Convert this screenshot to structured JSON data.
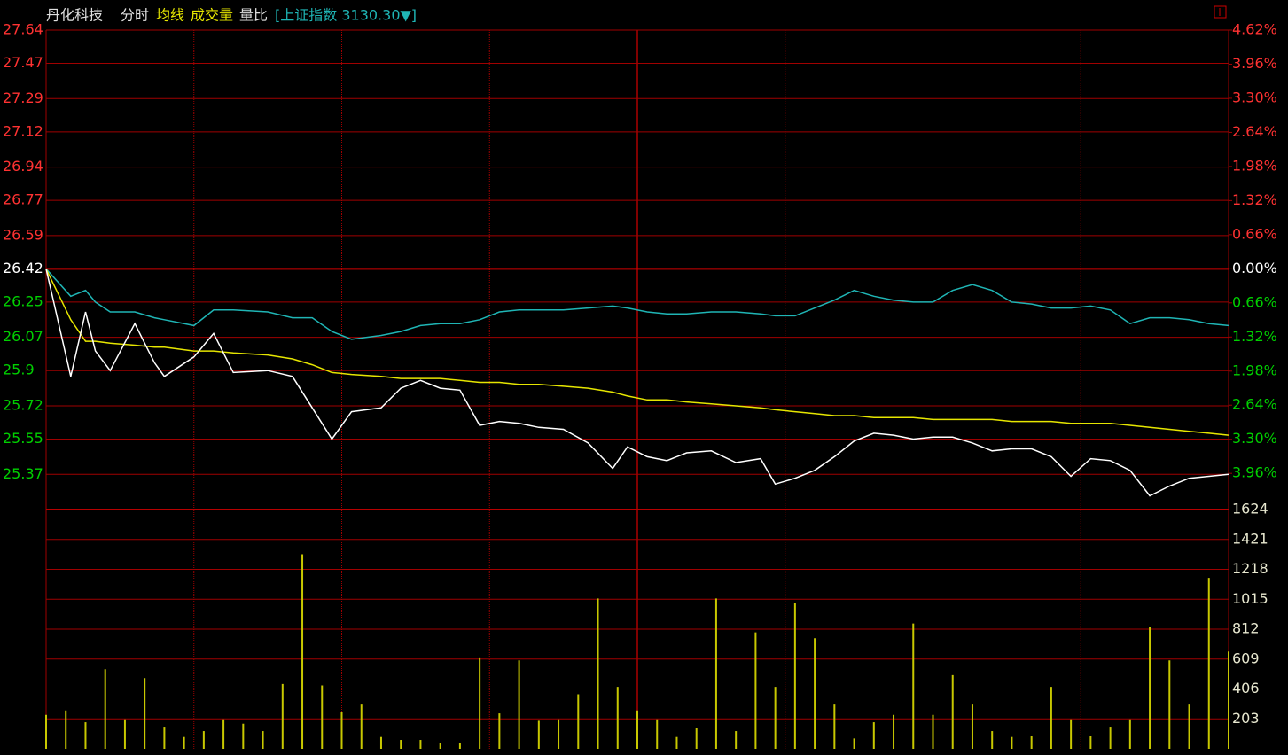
{
  "header": {
    "stock": "丹化科技",
    "items": [
      "分时",
      "均线",
      "成交量",
      "量比"
    ],
    "index": "[上证指数 3130.30▼]"
  },
  "chart_data": [
    {
      "type": "line",
      "xlim": [
        0,
        240
      ],
      "x": [
        0,
        5,
        8,
        10,
        13,
        18,
        22,
        24,
        30,
        34,
        38,
        45,
        50,
        54,
        58,
        62,
        68,
        72,
        76,
        80,
        84,
        88,
        92,
        96,
        100,
        105,
        110,
        115,
        118,
        122,
        126,
        130,
        135,
        140,
        145,
        148,
        152,
        156,
        160,
        164,
        168,
        172,
        176,
        180,
        184,
        188,
        192,
        196,
        200,
        204,
        208,
        212,
        216,
        220,
        224,
        228,
        232,
        236,
        240
      ],
      "series": [
        {
          "color": "#ffffff",
          "values": [
            26.42,
            25.87,
            26.2,
            26.0,
            25.9,
            26.14,
            25.94,
            25.87,
            25.97,
            26.09,
            25.89,
            25.9,
            25.87,
            25.71,
            25.55,
            25.69,
            25.71,
            25.81,
            25.85,
            25.81,
            25.8,
            25.62,
            25.64,
            25.63,
            25.61,
            25.6,
            25.53,
            25.4,
            25.51,
            25.46,
            25.44,
            25.48,
            25.49,
            25.43,
            25.45,
            25.32,
            25.35,
            25.39,
            25.46,
            25.54,
            25.58,
            25.57,
            25.55,
            25.56,
            25.56,
            25.53,
            25.49,
            25.5,
            25.5,
            25.46,
            25.36,
            25.45,
            25.44,
            25.39,
            25.26,
            25.31,
            25.35,
            25.36,
            25.37
          ]
        },
        {
          "color": "#e6e600",
          "values": [
            26.42,
            26.16,
            26.05,
            26.05,
            26.04,
            26.03,
            26.02,
            26.02,
            26.0,
            26.0,
            25.99,
            25.98,
            25.96,
            25.93,
            25.89,
            25.88,
            25.87,
            25.86,
            25.86,
            25.86,
            25.85,
            25.84,
            25.84,
            25.83,
            25.83,
            25.82,
            25.81,
            25.79,
            25.77,
            25.75,
            25.75,
            25.74,
            25.73,
            25.72,
            25.71,
            25.7,
            25.69,
            25.68,
            25.67,
            25.67,
            25.66,
            25.66,
            25.66,
            25.65,
            25.65,
            25.65,
            25.65,
            25.64,
            25.64,
            25.64,
            25.63,
            25.63,
            25.63,
            25.62,
            25.61,
            25.6,
            25.59,
            25.58,
            25.57
          ]
        },
        {
          "color": "#1fb5b5",
          "values": [
            26.42,
            26.28,
            26.31,
            26.25,
            26.2,
            26.2,
            26.17,
            26.16,
            26.13,
            26.21,
            26.21,
            26.2,
            26.17,
            26.17,
            26.1,
            26.06,
            26.08,
            26.1,
            26.13,
            26.14,
            26.14,
            26.16,
            26.2,
            26.21,
            26.21,
            26.21,
            26.22,
            26.23,
            26.22,
            26.2,
            26.19,
            26.19,
            26.2,
            26.2,
            26.19,
            26.18,
            26.18,
            26.22,
            26.26,
            26.31,
            26.28,
            26.26,
            26.25,
            26.25,
            26.31,
            26.34,
            26.31,
            26.25,
            26.24,
            26.22,
            26.22,
            26.23,
            26.21,
            26.14,
            26.17,
            26.17,
            26.16,
            26.14,
            26.13
          ]
        }
      ],
      "ylim": [
        25.19,
        27.64
      ],
      "yticks": [
        27.64,
        27.47,
        27.29,
        27.12,
        26.94,
        26.77,
        26.59,
        26.42,
        26.25,
        26.07,
        25.9,
        25.72,
        25.55,
        25.37
      ],
      "y2lim": [
        -4.66,
        4.62
      ],
      "y2ticks": [
        {
          "value": 4.62,
          "label": "4.62%"
        },
        {
          "value": 3.96,
          "label": "3.96%"
        },
        {
          "value": 3.3,
          "label": "3.30%"
        },
        {
          "value": 2.64,
          "label": "2.64%"
        },
        {
          "value": 1.98,
          "label": "1.98%"
        },
        {
          "value": 1.32,
          "label": "1.32%"
        },
        {
          "value": 0.66,
          "label": "0.66%"
        },
        {
          "value": 0,
          "label": "0.00%"
        },
        {
          "value": -0.66,
          "label": "0.66%"
        },
        {
          "value": -1.32,
          "label": "1.32%"
        },
        {
          "value": -1.98,
          "label": "1.98%"
        },
        {
          "value": -2.64,
          "label": "2.64%"
        },
        {
          "value": -3.3,
          "label": "3.30%"
        },
        {
          "value": -3.96,
          "label": "3.96%"
        }
      ],
      "grid": true
    },
    {
      "type": "bar",
      "xlim": [
        0,
        240
      ],
      "x": [
        0,
        4,
        8,
        12,
        16,
        20,
        24,
        28,
        32,
        36,
        40,
        44,
        48,
        52,
        56,
        60,
        64,
        68,
        72,
        76,
        80,
        84,
        88,
        92,
        96,
        100,
        104,
        108,
        112,
        116,
        120,
        124,
        128,
        132,
        136,
        140,
        144,
        148,
        152,
        156,
        160,
        164,
        168,
        172,
        176,
        180,
        184,
        188,
        192,
        196,
        200,
        204,
        208,
        212,
        216,
        220,
        224,
        228,
        232,
        236,
        240
      ],
      "values": [
        230,
        260,
        180,
        540,
        200,
        480,
        150,
        80,
        120,
        200,
        170,
        120,
        440,
        1320,
        430,
        250,
        300,
        80,
        60,
        60,
        40,
        40,
        620,
        240,
        600,
        190,
        200,
        370,
        1020,
        420,
        260,
        200,
        80,
        140,
        1020,
        120,
        790,
        420,
        990,
        750,
        300,
        70,
        180,
        230,
        850,
        230,
        500,
        300,
        120,
        80,
        90,
        420,
        200,
        90,
        150,
        200,
        830,
        600,
        300,
        1160,
        660
      ],
      "color": "#c8c800",
      "ylim": [
        0,
        1624
      ],
      "yticks": [
        1624,
        1421,
        1218,
        1015,
        812,
        609,
        406,
        203
      ],
      "grid": true
    }
  ]
}
